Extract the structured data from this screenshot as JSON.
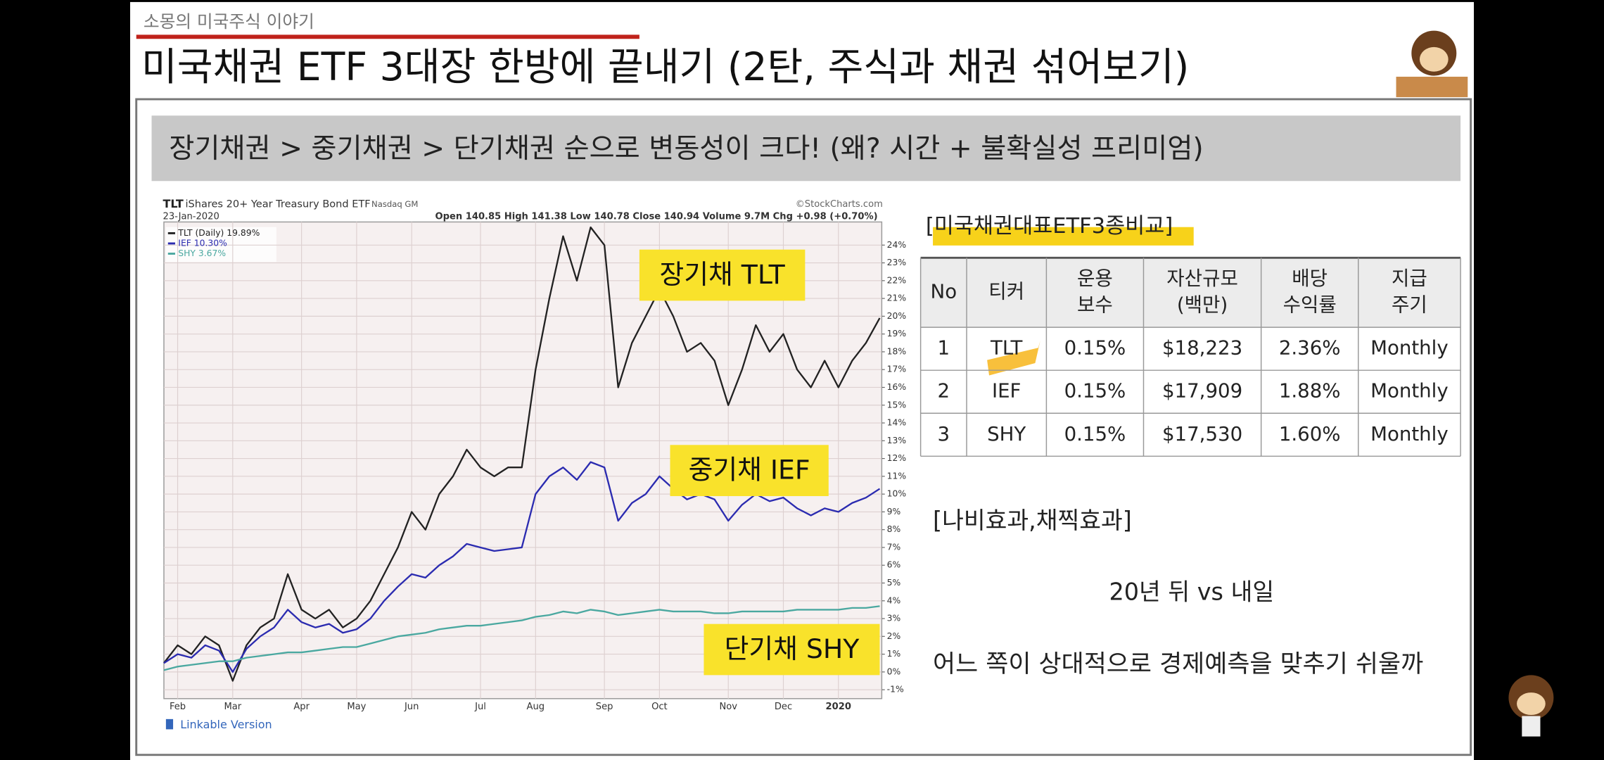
{
  "header": {
    "channel": "소몽의 미국주식 이야기",
    "title": "미국채권 ETF 3대장 한방에 끝내기 (2탄, 주식과 채권 섞어보기)"
  },
  "banner": "장기채권 > 중기채권 > 단기채권 순으로 변동성이 크다! (왜? 시간 + 불확실성 프리미엄)",
  "chart_data": {
    "type": "line",
    "symbol": "TLT",
    "title": "iShares 20+ Year Treasury Bond ETF",
    "exchange": "Nasdaq GM",
    "date": "23-Jan-2020",
    "quote": "Open 140.85 High 141.38 Low 140.78 Close 140.94 Volume 9.7M Chg +0.98 (+0.70%)",
    "source": "©StockCharts.com",
    "link": "Linkable Version",
    "annotations": [
      "장기채 TLT",
      "중기채 IEF",
      "단기채 SHY"
    ],
    "categories": [
      null,
      "Feb",
      null,
      null,
      null,
      "Mar",
      null,
      null,
      null,
      null,
      "Apr",
      null,
      null,
      null,
      "May",
      null,
      null,
      null,
      "Jun",
      null,
      null,
      null,
      null,
      "Jul",
      null,
      null,
      null,
      "Aug",
      null,
      null,
      null,
      null,
      "Sep",
      null,
      null,
      null,
      "Oct",
      null,
      null,
      null,
      null,
      "Nov",
      null,
      null,
      null,
      "Dec",
      null,
      null,
      null,
      "2020",
      null,
      null,
      null
    ],
    "series": [
      {
        "name": "TLT (Daily) 19.89%",
        "color": "#222222",
        "values": [
          0.5,
          1.5,
          1.0,
          2.0,
          1.5,
          -0.5,
          1.5,
          2.5,
          3.0,
          5.5,
          3.5,
          3.0,
          3.5,
          2.5,
          3.0,
          4.0,
          5.5,
          7.0,
          9.0,
          8.0,
          10.0,
          11.0,
          12.5,
          11.5,
          11.0,
          11.5,
          11.5,
          17.0,
          21.0,
          24.5,
          22.0,
          25.0,
          24.0,
          16.0,
          18.5,
          20.0,
          21.5,
          20.0,
          18.0,
          18.5,
          17.5,
          15.0,
          17.0,
          19.5,
          18.0,
          19.0,
          17.0,
          16.0,
          17.5,
          16.0,
          17.5,
          18.5,
          19.9
        ]
      },
      {
        "name": "IEF 10.30%",
        "color": "#2b2bb0",
        "values": [
          0.5,
          1.0,
          0.8,
          1.5,
          1.2,
          0.0,
          1.3,
          2.0,
          2.5,
          3.5,
          2.8,
          2.5,
          2.7,
          2.2,
          2.4,
          3.0,
          4.0,
          4.8,
          5.5,
          5.3,
          6.0,
          6.5,
          7.2,
          7.0,
          6.8,
          6.9,
          7.0,
          10.0,
          11.0,
          11.5,
          10.8,
          11.8,
          11.5,
          8.5,
          9.5,
          10.0,
          11.0,
          10.3,
          9.7,
          10.0,
          9.7,
          8.5,
          9.4,
          10.0,
          9.6,
          9.8,
          9.2,
          8.8,
          9.2,
          9.0,
          9.5,
          9.8,
          10.3
        ]
      },
      {
        "name": "SHY 3.67%",
        "color": "#4aa8a0",
        "values": [
          0.1,
          0.3,
          0.4,
          0.5,
          0.6,
          0.6,
          0.8,
          0.9,
          1.0,
          1.1,
          1.1,
          1.2,
          1.3,
          1.4,
          1.4,
          1.6,
          1.8,
          2.0,
          2.1,
          2.2,
          2.4,
          2.5,
          2.6,
          2.6,
          2.7,
          2.8,
          2.9,
          3.1,
          3.2,
          3.4,
          3.3,
          3.5,
          3.4,
          3.2,
          3.3,
          3.4,
          3.5,
          3.4,
          3.4,
          3.4,
          3.3,
          3.3,
          3.4,
          3.4,
          3.4,
          3.4,
          3.5,
          3.5,
          3.5,
          3.5,
          3.6,
          3.6,
          3.7
        ]
      }
    ],
    "ylim": [
      -1.5,
      25.3
    ],
    "yticks": [
      {
        "value": -1,
        "label": "-1%"
      },
      {
        "value": 0,
        "label": "0%"
      },
      {
        "value": 1,
        "label": "1%"
      },
      {
        "value": 2,
        "label": "2%"
      },
      {
        "value": 3,
        "label": "3%"
      },
      {
        "value": 4,
        "label": "4%"
      },
      {
        "value": 5,
        "label": "5%"
      },
      {
        "value": 6,
        "label": "6%"
      },
      {
        "value": 7,
        "label": "7%"
      },
      {
        "value": 8,
        "label": "8%"
      },
      {
        "value": 9,
        "label": "9%"
      },
      {
        "value": 10,
        "label": "10%"
      },
      {
        "value": 11,
        "label": "11%"
      },
      {
        "value": 12,
        "label": "12%"
      },
      {
        "value": 13,
        "label": "13%"
      },
      {
        "value": 14,
        "label": "14%"
      },
      {
        "value": 15,
        "label": "15%"
      },
      {
        "value": 16,
        "label": "16%"
      },
      {
        "value": 17,
        "label": "17%"
      },
      {
        "value": 18,
        "label": "18%"
      },
      {
        "value": 19,
        "label": "19%"
      },
      {
        "value": 20,
        "label": "20%"
      },
      {
        "value": 21,
        "label": "21%"
      },
      {
        "value": 22,
        "label": "22%"
      },
      {
        "value": 23,
        "label": "23%"
      },
      {
        "value": 24,
        "label": "24%"
      }
    ],
    "grid": true
  },
  "table": {
    "caption": "[미국채권대표ETF3종비교]",
    "columns": [
      [
        "No"
      ],
      [
        "티커"
      ],
      [
        "운용",
        "보수"
      ],
      [
        "자산규모",
        "(백만)"
      ],
      [
        "배당",
        "수익률"
      ],
      [
        "지급",
        "주기"
      ]
    ],
    "rows": [
      [
        "1",
        "TLT",
        "0.15%",
        "$18,223",
        "2.36%",
        "Monthly"
      ],
      [
        "2",
        "IEF",
        "0.15%",
        "$17,909",
        "1.88%",
        "Monthly"
      ],
      [
        "3",
        "SHY",
        "0.15%",
        "$17,530",
        "1.60%",
        "Monthly"
      ]
    ]
  },
  "notes": [
    "[나비효과,채찍효과]",
    "20년 뒤 vs 내일",
    "어느 쪽이 상대적으로 경제예측을 맞추기 쉬울까"
  ]
}
